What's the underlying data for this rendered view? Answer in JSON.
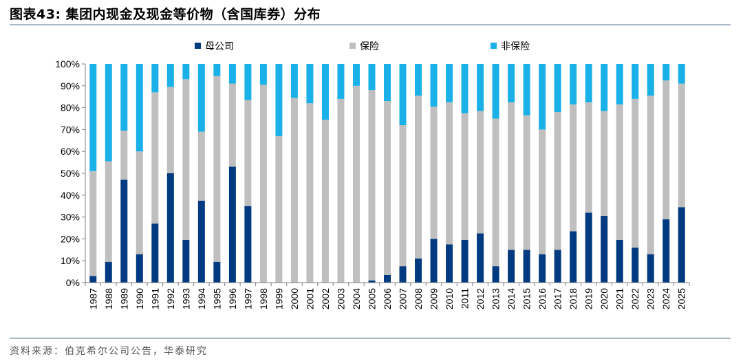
{
  "header": {
    "title": "图表43:  集团内现金及现金等价物（含国库券）分布"
  },
  "footer": {
    "source": "资料来源：伯克希尔公司公告，华泰研究"
  },
  "chart_data": {
    "type": "bar",
    "stacked": true,
    "categories": [
      "1987",
      "1988",
      "1989",
      "1990",
      "1991",
      "1992",
      "1993",
      "1994",
      "1995",
      "1996",
      "1997",
      "1998",
      "1999",
      "2000",
      "2001",
      "2002",
      "2003",
      "2004",
      "2005",
      "2006",
      "2007",
      "2008",
      "2009",
      "2010",
      "2011",
      "2012",
      "2013",
      "2014",
      "2015",
      "2016",
      "2017",
      "2018",
      "2019",
      "2020",
      "2021",
      "2022",
      "2023",
      "2024",
      "2025"
    ],
    "series": [
      {
        "name": "母公司",
        "color": "#003a80",
        "values": [
          3,
          9.5,
          47,
          13,
          27,
          50,
          19.5,
          37.5,
          9.5,
          53,
          35,
          0,
          0,
          0,
          0,
          0,
          0,
          0,
          1,
          3.5,
          7.5,
          11,
          20,
          17.5,
          19.5,
          22.5,
          7.5,
          15,
          15,
          13,
          15,
          23.5,
          32,
          30.5,
          19.5,
          16,
          13,
          29,
          34.5
        ]
      },
      {
        "name": "保险",
        "color": "#bfbfbf",
        "values": [
          48,
          46,
          22.5,
          47,
          60,
          39.5,
          73.5,
          31.5,
          85,
          38,
          48.5,
          90.5,
          67,
          84.5,
          82,
          74.5,
          84,
          90,
          87,
          79.5,
          64.5,
          74.5,
          60.5,
          65,
          58,
          56,
          67.5,
          67.5,
          61.5,
          57,
          63,
          58,
          50.5,
          48,
          62,
          68,
          72.5,
          63.5,
          56.5
        ]
      },
      {
        "name": "非保险",
        "color": "#1ab0e8",
        "values": [
          49,
          44.5,
          30.5,
          40,
          13,
          10.5,
          7,
          31,
          5.5,
          9,
          16.5,
          9.5,
          33,
          15.5,
          18,
          25.5,
          16,
          10,
          12,
          17,
          28,
          14.5,
          19.5,
          17.5,
          22.5,
          21.5,
          25,
          17.5,
          23.5,
          30,
          22,
          18.5,
          17.5,
          21.5,
          18.5,
          16,
          14.5,
          7.5,
          9
        ]
      }
    ],
    "ylim": [
      0,
      100
    ],
    "yticks": [
      "0%",
      "10%",
      "20%",
      "30%",
      "40%",
      "50%",
      "60%",
      "70%",
      "80%",
      "90%",
      "100%"
    ],
    "legend_position": "top",
    "grid": false
  }
}
